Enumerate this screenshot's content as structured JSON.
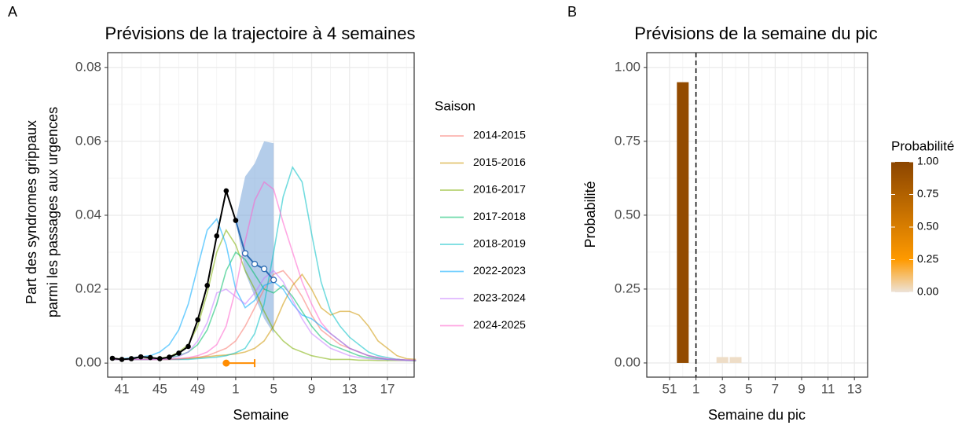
{
  "chart_data": [
    {
      "type": "line",
      "tag": "A",
      "title": "Prévisions de la trajectoire à 4 semaines",
      "xlabel": "Semaine",
      "ylabel": [
        "Part des syndromes grippaux",
        "parmi les passages aux urgences"
      ],
      "categories": [
        null,
        "41",
        null,
        null,
        null,
        "45",
        null,
        null,
        null,
        "49",
        null,
        null,
        null,
        "1",
        null,
        null,
        null,
        "5",
        null,
        null,
        null,
        "9",
        null,
        null,
        null,
        "13",
        null,
        null,
        null,
        "17",
        null,
        null,
        null
      ],
      "ylim": [
        -0.0038,
        0.084
      ],
      "yticks": [
        {
          "value": 0,
          "label": "0.00"
        },
        {
          "value": 0.02,
          "label": "0.02"
        },
        {
          "value": 0.04,
          "label": "0.04"
        },
        {
          "value": 0.06,
          "label": "0.06"
        },
        {
          "value": 0.08,
          "label": "0.08"
        }
      ],
      "yminorticks": [
        0.01,
        0.03,
        0.05,
        0.07
      ],
      "grid": true,
      "legend_title": "Saison",
      "legend_position": "right",
      "series": [
        {
          "name": "2014-2015",
          "color": "#F8766D",
          "values": [
            0.001,
            0.001,
            0.001,
            0.001,
            0.001,
            0.001,
            0.001,
            0.001,
            0.0012,
            0.0015,
            0.002,
            0.003,
            0.004,
            0.006,
            0.01,
            0.015,
            0.02,
            0.024,
            0.025,
            0.022,
            0.018,
            0.013,
            0.009,
            0.007,
            0.005,
            0.004,
            0.003,
            0.002,
            0.0015,
            0.001,
            0.001,
            0.0008,
            0.0007
          ]
        },
        {
          "name": "2015-2016",
          "color": "#CD9600",
          "values": [
            0.001,
            0.001,
            0.001,
            0.001,
            0.001,
            0.001,
            0.001,
            0.0012,
            0.0013,
            0.0015,
            0.0017,
            0.002,
            0.0022,
            0.0025,
            0.003,
            0.004,
            0.006,
            0.01,
            0.016,
            0.021,
            0.024,
            0.02,
            0.015,
            0.013,
            0.014,
            0.014,
            0.013,
            0.01,
            0.006,
            0.004,
            0.002,
            0.0012,
            0.001
          ]
        },
        {
          "name": "2016-2017",
          "color": "#7CAE00",
          "values": [
            0.001,
            0.001,
            0.001,
            0.001,
            0.0012,
            0.0013,
            0.0017,
            0.003,
            0.005,
            0.01,
            0.019,
            0.03,
            0.036,
            0.032,
            0.025,
            0.02,
            0.014,
            0.009,
            0.006,
            0.004,
            0.003,
            0.002,
            0.0015,
            0.001,
            0.001,
            0.001,
            0.0008,
            0.0008,
            0.0007,
            0.0007,
            0.0007,
            0.0007,
            0.0006
          ]
        },
        {
          "name": "2017-2018",
          "color": "#00BE67",
          "values": [
            0.001,
            0.001,
            0.001,
            0.001,
            0.001,
            0.0012,
            0.0015,
            0.002,
            0.003,
            0.005,
            0.009,
            0.016,
            0.025,
            0.03,
            0.028,
            0.024,
            0.02,
            0.019,
            0.021,
            0.018,
            0.014,
            0.01,
            0.007,
            0.005,
            0.004,
            0.003,
            0.002,
            0.0015,
            0.0012,
            0.001,
            0.001,
            0.0008,
            0.0007
          ]
        },
        {
          "name": "2018-2019",
          "color": "#00BFC4",
          "values": [
            0.001,
            0.001,
            0.001,
            0.001,
            0.001,
            0.001,
            0.001,
            0.001,
            0.001,
            0.0012,
            0.0014,
            0.0016,
            0.002,
            0.0028,
            0.004,
            0.008,
            0.016,
            0.03,
            0.045,
            0.053,
            0.049,
            0.035,
            0.022,
            0.014,
            0.01,
            0.007,
            0.005,
            0.003,
            0.002,
            0.0015,
            0.001,
            0.0008,
            0.0007
          ]
        },
        {
          "name": "2022-2023",
          "color": "#00A9FF",
          "values": [
            0.001,
            0.0012,
            0.0014,
            0.0017,
            0.002,
            0.003,
            0.005,
            0.009,
            0.016,
            0.026,
            0.036,
            0.039,
            0.032,
            0.02,
            0.015,
            0.017,
            0.021,
            0.022,
            0.02,
            0.016,
            0.013,
            0.012,
            0.01,
            0.008,
            0.006,
            0.004,
            0.003,
            0.002,
            0.0015,
            0.001,
            0.001,
            0.0008,
            0.0007
          ]
        },
        {
          "name": "2023-2024",
          "color": "#C77CFF",
          "values": [
            0.001,
            0.001,
            0.001,
            0.001,
            0.001,
            0.001,
            0.0013,
            0.0018,
            0.003,
            0.006,
            0.011,
            0.019,
            0.02,
            0.018,
            0.016,
            0.019,
            0.023,
            0.025,
            0.022,
            0.017,
            0.012,
            0.008,
            0.006,
            0.004,
            0.003,
            0.002,
            0.0015,
            0.0012,
            0.001,
            0.001,
            0.0008,
            0.0007,
            0.0007
          ]
        },
        {
          "name": "2024-2025",
          "color": "#FF61CC",
          "values": [
            0.001,
            0.001,
            0.001,
            0.001,
            0.001,
            0.001,
            0.001,
            0.0012,
            0.0015,
            0.002,
            0.003,
            0.005,
            0.01,
            0.02,
            0.033,
            0.044,
            0.049,
            0.047,
            0.038,
            0.03,
            0.022,
            0.016,
            0.011,
            0.008,
            0.006,
            0.004,
            0.003,
            0.002,
            0.0015,
            0.0012,
            0.001,
            0.0009,
            0.0008
          ]
        }
      ],
      "observed": {
        "color": "#000000",
        "values": [
          0.0013,
          0.001,
          0.0012,
          0.0017,
          0.0015,
          0.0012,
          0.0016,
          0.0027,
          0.0045,
          0.0117,
          0.021,
          0.0344,
          0.0466,
          0.0386,
          null,
          null,
          null,
          null,
          null,
          null,
          null,
          null,
          null,
          null,
          null,
          null,
          null,
          null,
          null,
          null,
          null,
          null,
          null
        ]
      },
      "forecast": {
        "color": "#2E6DB4",
        "band_color": "#6A9BD6",
        "values": [
          null,
          null,
          null,
          null,
          null,
          null,
          null,
          null,
          null,
          null,
          null,
          null,
          null,
          null,
          0.0297,
          0.0268,
          0.0255,
          0.0225,
          null,
          null,
          null,
          null,
          null,
          null,
          null,
          null,
          null,
          null,
          null,
          null,
          null,
          null,
          null
        ],
        "lower": [
          null,
          null,
          null,
          null,
          null,
          null,
          null,
          null,
          null,
          null,
          null,
          null,
          null,
          0.0386,
          0.0245,
          0.018,
          0.012,
          0.008,
          null,
          null,
          null,
          null,
          null,
          null,
          null,
          null,
          null,
          null,
          null,
          null,
          null,
          null,
          null
        ],
        "upper": [
          null,
          null,
          null,
          null,
          null,
          null,
          null,
          null,
          null,
          null,
          null,
          null,
          null,
          0.0386,
          0.0505,
          0.054,
          0.06,
          0.0595,
          null,
          null,
          null,
          null,
          null,
          null,
          null,
          null,
          null,
          null,
          null,
          null,
          null,
          null,
          null
        ]
      },
      "peak_point": {
        "color": "#FF8C00",
        "x": 12,
        "y": 0,
        "xerr": [
          12,
          15
        ]
      }
    },
    {
      "type": "bar",
      "tag": "B",
      "title": "Prévisions de la semaine du pic",
      "xlabel": "Semaine du pic",
      "ylabel": "Probabilité",
      "categories": [
        "51",
        null,
        "1",
        null,
        "3",
        null,
        "5",
        null,
        "7",
        null,
        "9",
        null,
        "11",
        null,
        "13"
      ],
      "values": [
        0,
        0.95,
        0,
        0,
        0.02,
        0.02,
        0,
        0,
        0,
        0,
        0,
        0,
        0,
        0,
        0
      ],
      "ylim": [
        -0.048,
        1.05
      ],
      "yticks": [
        {
          "value": 0,
          "label": "0.00"
        },
        {
          "value": 0.25,
          "label": "0.25"
        },
        {
          "value": 0.5,
          "label": "0.50"
        },
        {
          "value": 0.75,
          "label": "0.75"
        },
        {
          "value": 1,
          "label": "1.00"
        }
      ],
      "yminorticks": [
        0.125,
        0.375,
        0.625,
        0.875
      ],
      "grid": true,
      "reference_category": "1",
      "colorbar": {
        "title": "Probabilité",
        "ticks": [
          {
            "value": 0,
            "label": "0.00"
          },
          {
            "value": 0.25,
            "label": "0.25"
          },
          {
            "value": 0.5,
            "label": "0.50"
          },
          {
            "value": 0.75,
            "label": "0.75"
          },
          {
            "value": 1,
            "label": "1.00"
          }
        ],
        "stops": [
          [
            0,
            "#EDE3D8"
          ],
          [
            0.25,
            "#FF9A00"
          ],
          [
            1,
            "#8B4500"
          ]
        ]
      }
    }
  ]
}
